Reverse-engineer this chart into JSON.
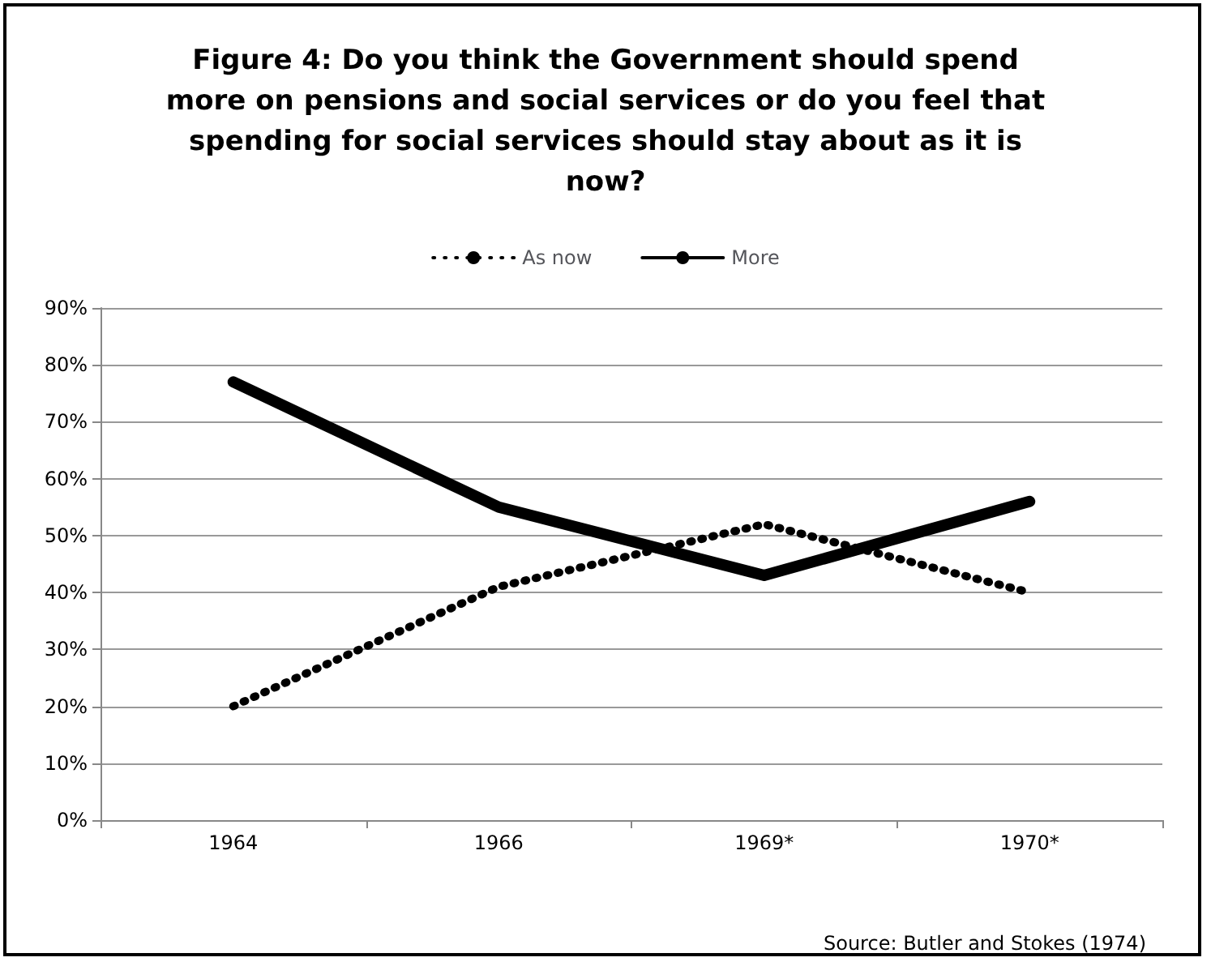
{
  "chart_data": {
    "type": "line",
    "title": "Figure 4: Do you think the Government should spend\nmore on pensions and social services or do you feel that\nspending for social services should stay about as it is\nnow?",
    "categories": [
      "1964",
      "1966",
      "1969*",
      "1970*"
    ],
    "series": [
      {
        "name": "As now",
        "color": "#000000",
        "values": [
          20,
          41,
          52,
          40
        ],
        "line_style": "dotted"
      },
      {
        "name": "More",
        "color": "#000000",
        "values": [
          77,
          55,
          43,
          56
        ],
        "line_style": "solid"
      }
    ],
    "ylim": [
      0,
      90
    ],
    "yticks": [
      {
        "value": 0,
        "label": "0%"
      },
      {
        "value": 10,
        "label": "10%"
      },
      {
        "value": 20,
        "label": "20%"
      },
      {
        "value": 30,
        "label": "30%"
      },
      {
        "value": 40,
        "label": "40%"
      },
      {
        "value": 50,
        "label": "50%"
      },
      {
        "value": 60,
        "label": "60%"
      },
      {
        "value": 70,
        "label": "70%"
      },
      {
        "value": 80,
        "label": "80%"
      },
      {
        "value": 90,
        "label": "90%"
      }
    ],
    "grid": "y",
    "legend": "top",
    "marker": "none",
    "annotations": [
      "Source: Butler and Stokes (1974)"
    ]
  }
}
